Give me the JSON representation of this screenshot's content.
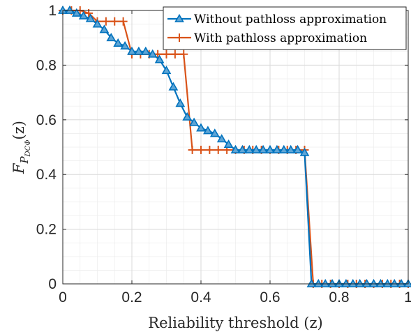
{
  "chart_data": {
    "type": "line",
    "xlabel": "Reliability threshold (z)",
    "ylabel": "F_{P_{DCΦ}}(z)",
    "ylabel_parts": {
      "main": "F",
      "sub1": "P",
      "sub2": "DCΦ",
      "arg": "(z)"
    },
    "xlim": [
      0,
      1
    ],
    "ylim": [
      0,
      1
    ],
    "x_ticks": [
      "0",
      "0.2",
      "0.4",
      "0.6",
      "0.8",
      "1"
    ],
    "y_ticks": [
      "0",
      "0.2",
      "0.4",
      "0.6",
      "0.8",
      "1"
    ],
    "grid": true,
    "legend_position": "top-right",
    "series": [
      {
        "name": "Without pathloss approximation",
        "color": "#0072bd",
        "marker": "triangle",
        "x": [
          0,
          0.02,
          0.04,
          0.06,
          0.08,
          0.1,
          0.12,
          0.14,
          0.16,
          0.18,
          0.2,
          0.22,
          0.24,
          0.26,
          0.28,
          0.3,
          0.32,
          0.34,
          0.36,
          0.38,
          0.4,
          0.42,
          0.44,
          0.46,
          0.48,
          0.5,
          0.52,
          0.54,
          0.56,
          0.58,
          0.6,
          0.62,
          0.64,
          0.66,
          0.68,
          0.7,
          0.72,
          0.74,
          0.76,
          0.78,
          0.8,
          0.82,
          0.84,
          0.86,
          0.88,
          0.9,
          0.92,
          0.94,
          0.96,
          0.98,
          1.0
        ],
        "y": [
          1.0,
          1.0,
          0.99,
          0.98,
          0.97,
          0.95,
          0.93,
          0.9,
          0.88,
          0.87,
          0.85,
          0.85,
          0.85,
          0.84,
          0.82,
          0.78,
          0.72,
          0.66,
          0.61,
          0.59,
          0.57,
          0.56,
          0.55,
          0.53,
          0.51,
          0.49,
          0.49,
          0.49,
          0.49,
          0.49,
          0.49,
          0.49,
          0.49,
          0.49,
          0.49,
          0.48,
          0.0,
          0.0,
          0.0,
          0.0,
          0.0,
          0.0,
          0.0,
          0.0,
          0.0,
          0.0,
          0.0,
          0.0,
          0.0,
          0.0,
          0.0
        ]
      },
      {
        "name": "With pathloss approximation",
        "color": "#d95319",
        "marker": "plus",
        "x": [
          0,
          0.025,
          0.05,
          0.075,
          0.1,
          0.125,
          0.15,
          0.175,
          0.2,
          0.225,
          0.25,
          0.275,
          0.3,
          0.325,
          0.35,
          0.375,
          0.4,
          0.425,
          0.45,
          0.475,
          0.5,
          0.525,
          0.55,
          0.575,
          0.6,
          0.625,
          0.65,
          0.675,
          0.7,
          0.725,
          0.75,
          0.775,
          0.8,
          0.825,
          0.85,
          0.875,
          0.9,
          0.925,
          0.95,
          0.975,
          1.0
        ],
        "y": [
          1.0,
          1.0,
          1.0,
          0.99,
          0.96,
          0.96,
          0.96,
          0.96,
          0.84,
          0.84,
          0.84,
          0.84,
          0.84,
          0.84,
          0.84,
          0.49,
          0.49,
          0.49,
          0.49,
          0.49,
          0.49,
          0.49,
          0.49,
          0.49,
          0.49,
          0.49,
          0.49,
          0.49,
          0.49,
          0.0,
          0.0,
          0.0,
          0.0,
          0.0,
          0.0,
          0.0,
          0.0,
          0.0,
          0.0,
          0.0,
          0.0
        ]
      }
    ]
  }
}
